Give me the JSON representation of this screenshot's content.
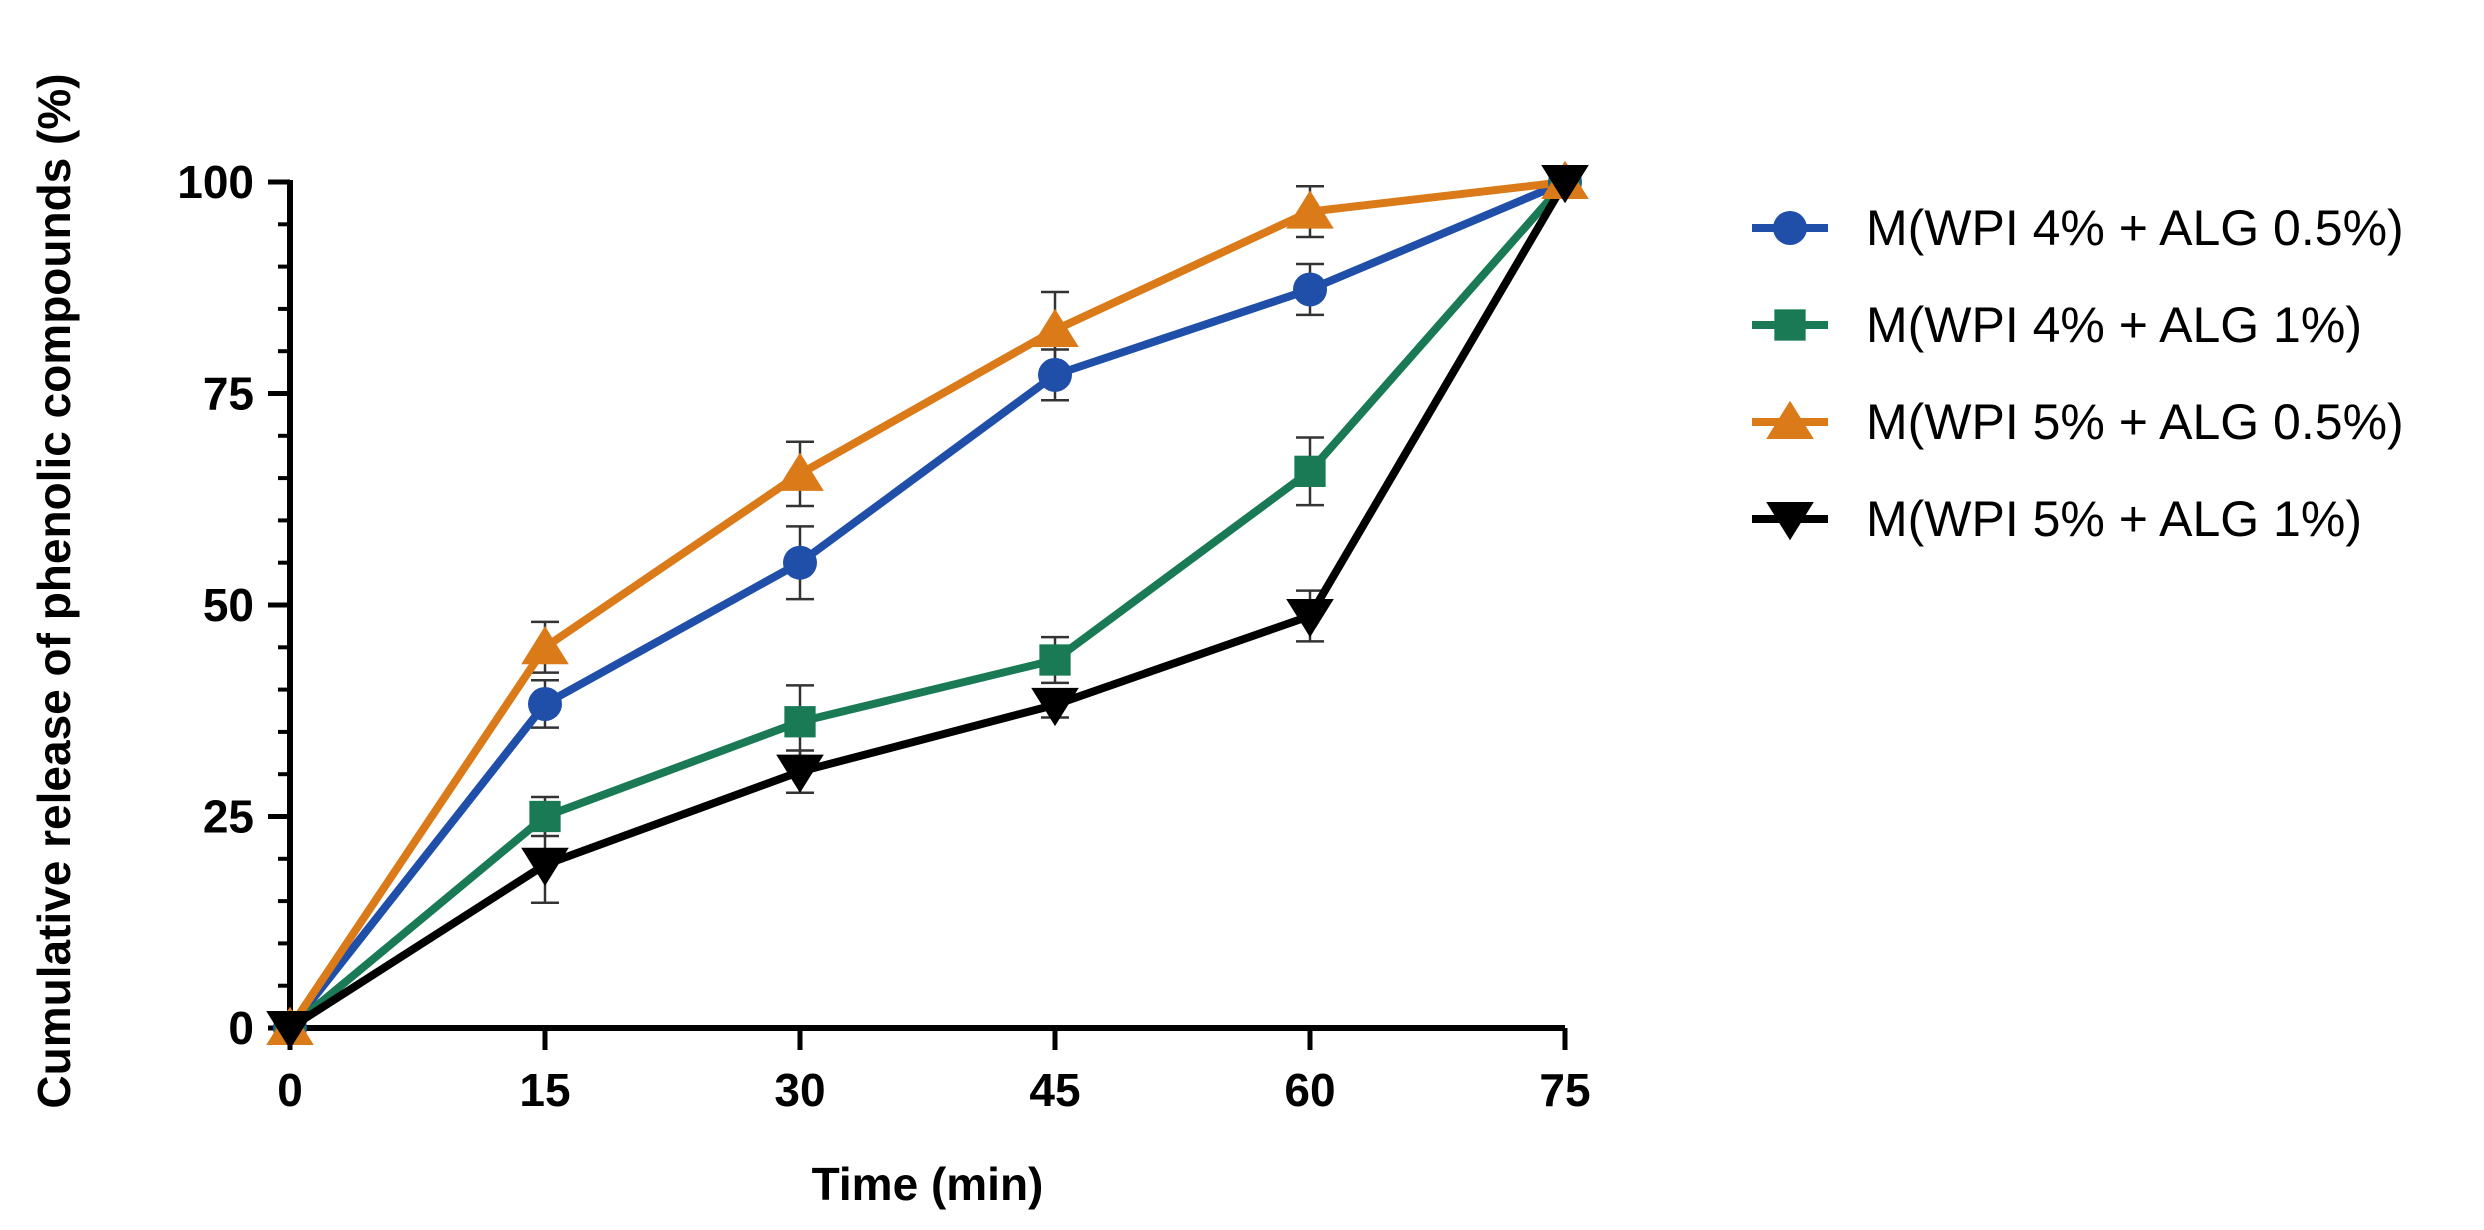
{
  "chart_data": {
    "type": "line",
    "title": "",
    "xlabel": "Time (min)",
    "ylabel": "Cumulative release of phenolic compounds (%)",
    "xlim": [
      0,
      75
    ],
    "ylim": [
      0,
      100
    ],
    "x_ticks": [
      0,
      15,
      30,
      45,
      60,
      75
    ],
    "x_tick_labels": [
      "0",
      "15",
      "30",
      "45",
      "60",
      "75"
    ],
    "y_ticks": [
      0,
      25,
      50,
      75,
      100
    ],
    "y_tick_labels": [
      "0",
      "25",
      "50",
      "75",
      "100"
    ],
    "y_minor_step": 5,
    "grid": false,
    "legend_position": "right",
    "x": [
      0,
      15,
      30,
      45,
      60,
      75
    ],
    "series": [
      {
        "name": "M(WPI 4% + ALG 0.5%)",
        "color": "#1f4fa8",
        "marker": "circle",
        "values": [
          0,
          38.3,
          55,
          77.2,
          87.3,
          100
        ],
        "errors": [
          1.5,
          2.8,
          4.3,
          3.0,
          3.0,
          1.0
        ]
      },
      {
        "name": "M(WPI 4% + ALG 1%)",
        "color": "#197a55",
        "marker": "square",
        "values": [
          0,
          25,
          36.2,
          43.5,
          65.8,
          100
        ],
        "errors": [
          1.5,
          2.3,
          4.3,
          2.7,
          4.0,
          1.0
        ]
      },
      {
        "name": "M(WPI 5% + ALG 0.5%)",
        "color": "#db7a18",
        "marker": "triangle-up",
        "values": [
          0,
          45,
          65.5,
          82.5,
          96.5,
          100
        ],
        "errors": [
          1.5,
          3.0,
          3.8,
          4.5,
          3.0,
          1.0
        ]
      },
      {
        "name": "M(WPI 5% + ALG 1%)",
        "color": "#000000",
        "marker": "triangle-down",
        "values": [
          0,
          19.3,
          30.3,
          38.2,
          48.7,
          100
        ],
        "errors": [
          1.5,
          4.5,
          2.5,
          1.5,
          3.0,
          1.0
        ]
      }
    ]
  }
}
